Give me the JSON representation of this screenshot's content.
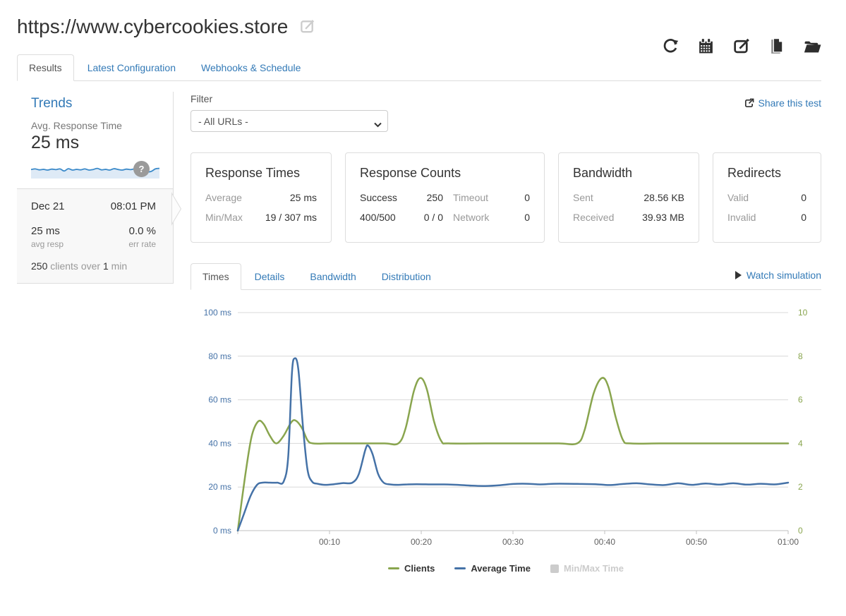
{
  "colors": {
    "accent": "#337ab7",
    "chart_blue": "#4572A7",
    "chart_green": "#89A54E",
    "grid": "#D8D8D8",
    "axis_line": "#C0C0C0"
  },
  "header": {
    "title": "https://www.cybercookies.store",
    "toolbar_icons": [
      "refresh-icon",
      "calendar-icon",
      "edit-icon",
      "copy-icon",
      "folder-open-icon"
    ]
  },
  "main_tabs": {
    "results": "Results",
    "latest_configuration": "Latest Configuration",
    "webhooks": "Webhooks & Schedule"
  },
  "sidebar": {
    "heading": "Trends",
    "metric_label": "Avg. Response Time",
    "metric_value": "25 ms",
    "help_badge": "?",
    "result_item": {
      "date": "Dec 21",
      "time": "08:01 PM",
      "avg_value": "25 ms",
      "err_value": "0.0 %",
      "avg_label": "avg resp",
      "err_label": "err rate",
      "clients_num": "250",
      "clients_mid": " clients over ",
      "clients_num2": "1",
      "clients_suffix": " min"
    }
  },
  "filter": {
    "label": "Filter",
    "selected_option": "- All URLs -"
  },
  "share_link": {
    "label": "Share this test"
  },
  "cards": {
    "response_times": {
      "title": "Response Times",
      "rows": [
        {
          "label": "Average",
          "value": "25 ms"
        },
        {
          "label": "Min/Max",
          "value": "19 / 307 ms"
        }
      ]
    },
    "response_counts": {
      "title": "Response Counts",
      "rows": [
        {
          "label": "Success",
          "value": "250",
          "label2": "Timeout",
          "value2": "0"
        },
        {
          "label": "400/500",
          "value": "0 / 0",
          "label2": "Network",
          "value2": "0"
        }
      ]
    },
    "bandwidth": {
      "title": "Bandwidth",
      "rows": [
        {
          "label": "Sent",
          "value": "28.56 KB"
        },
        {
          "label": "Received",
          "value": "39.93 MB"
        }
      ]
    },
    "redirects": {
      "title": "Redirects",
      "rows": [
        {
          "label": "Valid",
          "value": "0"
        },
        {
          "label": "Invalid",
          "value": "0"
        }
      ]
    }
  },
  "chart_tabs": {
    "times": "Times",
    "details": "Details",
    "bandwidth": "Bandwidth",
    "distribution": "Distribution"
  },
  "watch_simulation": {
    "label": "Watch simulation"
  },
  "chart_data": {
    "type": "line",
    "title": "",
    "x_axis": {
      "tick_labels": [
        "00:10",
        "00:20",
        "00:30",
        "00:40",
        "00:50",
        "01:00"
      ],
      "range_seconds": [
        0,
        60
      ],
      "tick_interval_seconds": 10
    },
    "y_axis_left": {
      "labels_bottom_to_top": [
        "0 ms",
        "20 ms",
        "40 ms",
        "60 ms",
        "80 ms",
        "100 ms"
      ],
      "min": 0,
      "max": 100,
      "color": "#4572A7"
    },
    "y_axis_right": {
      "labels_bottom_to_top": [
        "0",
        "2",
        "4",
        "6",
        "8",
        "10"
      ],
      "min": 0,
      "max": 10,
      "color": "#89A54E"
    },
    "grid": true,
    "legend_position": "bottom-center",
    "series": [
      {
        "name": "Clients",
        "color": "#89A54E",
        "axis": "right",
        "disabled": false,
        "points": [
          [
            0,
            0
          ],
          [
            0.8,
            2.5
          ],
          [
            1.5,
            4.3
          ],
          [
            2.2,
            5
          ],
          [
            2.8,
            4.9
          ],
          [
            3.5,
            4.35
          ],
          [
            4.2,
            4
          ],
          [
            5,
            4.35
          ],
          [
            5.8,
            4.95
          ],
          [
            6.3,
            5.05
          ],
          [
            7,
            4.7
          ],
          [
            7.6,
            4.15
          ],
          [
            8.2,
            4
          ],
          [
            10,
            4
          ],
          [
            13,
            4
          ],
          [
            16,
            4
          ],
          [
            17.5,
            4
          ],
          [
            18.3,
            4.7
          ],
          [
            19.2,
            6.4
          ],
          [
            19.9,
            7
          ],
          [
            20.6,
            6.5
          ],
          [
            21.4,
            5
          ],
          [
            22.2,
            4.1
          ],
          [
            23,
            4
          ],
          [
            27,
            4
          ],
          [
            31,
            4
          ],
          [
            35,
            4
          ],
          [
            37,
            4
          ],
          [
            37.8,
            4.6
          ],
          [
            38.8,
            6.3
          ],
          [
            39.7,
            7
          ],
          [
            40.4,
            6.6
          ],
          [
            41.2,
            5.2
          ],
          [
            42,
            4.15
          ],
          [
            42.8,
            4
          ],
          [
            46,
            4
          ],
          [
            50,
            4
          ],
          [
            54,
            4
          ],
          [
            58,
            4
          ],
          [
            60,
            4
          ]
        ]
      },
      {
        "name": "Average Time",
        "color": "#4572A7",
        "axis": "left",
        "disabled": false,
        "points": [
          [
            0,
            0
          ],
          [
            0.7,
            8
          ],
          [
            1.4,
            16
          ],
          [
            2.1,
            21
          ],
          [
            2.7,
            22
          ],
          [
            3.5,
            22
          ],
          [
            4.3,
            22
          ],
          [
            5,
            22.5
          ],
          [
            5.5,
            34
          ],
          [
            5.9,
            72
          ],
          [
            6.2,
            79
          ],
          [
            6.6,
            74
          ],
          [
            7.1,
            48
          ],
          [
            7.6,
            28
          ],
          [
            8.1,
            22.5
          ],
          [
            8.7,
            21.5
          ],
          [
            9.5,
            21
          ],
          [
            10.5,
            21.3
          ],
          [
            11.5,
            21.8
          ],
          [
            12.5,
            22
          ],
          [
            13.2,
            26
          ],
          [
            13.9,
            37
          ],
          [
            14.2,
            39
          ],
          [
            14.7,
            35
          ],
          [
            15.3,
            26
          ],
          [
            15.9,
            22
          ],
          [
            16.6,
            21.2
          ],
          [
            17.5,
            21
          ],
          [
            18.5,
            21.2
          ],
          [
            19.5,
            21.3
          ],
          [
            21,
            21.2
          ],
          [
            22.5,
            21.2
          ],
          [
            24,
            21
          ],
          [
            25.5,
            20.6
          ],
          [
            27,
            20.5
          ],
          [
            28.5,
            20.8
          ],
          [
            30,
            21.4
          ],
          [
            31.5,
            21.5
          ],
          [
            33,
            21.2
          ],
          [
            34.5,
            21.5
          ],
          [
            36,
            21.5
          ],
          [
            37.5,
            21.4
          ],
          [
            39,
            21.3
          ],
          [
            40.5,
            20.9
          ],
          [
            42,
            21.4
          ],
          [
            43.5,
            21.7
          ],
          [
            45,
            21.2
          ],
          [
            46.5,
            20.9
          ],
          [
            48,
            21.7
          ],
          [
            49.5,
            21
          ],
          [
            51,
            21.6
          ],
          [
            52.5,
            21.1
          ],
          [
            54,
            21.7
          ],
          [
            55.5,
            21.1
          ],
          [
            57,
            21.5
          ],
          [
            58.5,
            21.2
          ],
          [
            60,
            22
          ]
        ]
      },
      {
        "name": "Min/Max Time",
        "color": "#CCCCCC",
        "axis": "left",
        "disabled": true,
        "points": []
      }
    ],
    "legend": [
      {
        "label": "Clients",
        "color": "#89A54E",
        "swatch": "line",
        "enabled": true
      },
      {
        "label": "Average Time",
        "color": "#4572A7",
        "swatch": "line",
        "enabled": true
      },
      {
        "label": "Min/Max Time",
        "color": "#CCCCCC",
        "swatch": "box",
        "enabled": false
      }
    ]
  },
  "sparkline": {
    "line_color": "#3A89C9",
    "fill_color": "#DEEAF6",
    "values": [
      0.55,
      0.6,
      0.52,
      0.56,
      0.5,
      0.58,
      0.54,
      0.6,
      0.42,
      0.62,
      0.5,
      0.56,
      0.52,
      0.6,
      0.5,
      0.55,
      0.65,
      0.52,
      0.56,
      0.5,
      0.62,
      0.55,
      0.5,
      0.58,
      0.54,
      0.6,
      0.56,
      0.52,
      0.35,
      0.38,
      0.6,
      0.65
    ]
  }
}
